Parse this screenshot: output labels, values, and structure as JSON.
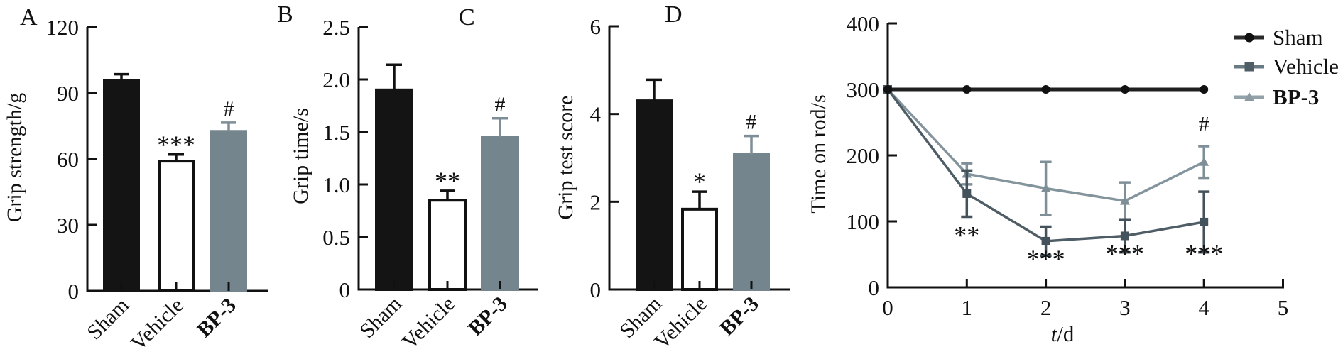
{
  "colors": {
    "axis": "#111111",
    "black_bar": "#141414",
    "white_bar": "#ffffff",
    "bp3_bar": "#75858e",
    "vehicle_line": "#4e5d66",
    "bp3_line": "#84949d",
    "sham_line": "#1f1f1f"
  },
  "chart_data": [
    {
      "id": "A",
      "type": "bar",
      "panel_label": "A",
      "ylabel": "Grip strength/g",
      "ylim": [
        0,
        120
      ],
      "yticks": [
        0,
        30,
        60,
        90,
        120
      ],
      "ytick_labels": [
        "0",
        "30",
        "60",
        "90",
        "120"
      ],
      "categories": [
        "Sham",
        "Vehicle",
        "BP-3"
      ],
      "bold_categories": [
        false,
        false,
        true
      ],
      "values": [
        95.5,
        59,
        72.5
      ],
      "errors_plus": [
        3,
        3,
        4
      ],
      "bar_styles": [
        {
          "fill": "#141414",
          "stroke": "#141414"
        },
        {
          "fill": "#ffffff",
          "stroke": "#111111"
        },
        {
          "fill": "#75858e",
          "stroke": "#75858e"
        }
      ],
      "error_colors": [
        "#111111",
        "#111111",
        "#7e8e97"
      ],
      "annotations": [
        "",
        "***",
        "#"
      ]
    },
    {
      "id": "B",
      "type": "bar",
      "panel_label": "B",
      "ylabel": "Grip time/s",
      "ylim": [
        0,
        2.5
      ],
      "yticks": [
        0,
        0.5,
        1.0,
        1.5,
        2.0,
        2.5
      ],
      "ytick_labels": [
        "0",
        "0.5",
        "1.0",
        "1.5",
        "2.0",
        "2.5"
      ],
      "categories": [
        "Sham",
        "Vehicle",
        "BP-3"
      ],
      "bold_categories": [
        false,
        false,
        true
      ],
      "values": [
        1.9,
        0.85,
        1.45
      ],
      "errors_plus": [
        0.24,
        0.09,
        0.18
      ],
      "bar_styles": [
        {
          "fill": "#141414",
          "stroke": "#141414"
        },
        {
          "fill": "#ffffff",
          "stroke": "#111111"
        },
        {
          "fill": "#75858e",
          "stroke": "#75858e"
        }
      ],
      "error_colors": [
        "#111111",
        "#111111",
        "#7e8e97"
      ],
      "annotations": [
        "",
        "**",
        "#"
      ]
    },
    {
      "id": "C",
      "type": "bar",
      "panel_label": "C",
      "ylabel": "Grip test score",
      "ylim": [
        0,
        6
      ],
      "yticks": [
        0,
        2,
        4,
        6
      ],
      "ytick_labels": [
        "0",
        "2",
        "4",
        "6"
      ],
      "categories": [
        "Sham",
        "Vehicle",
        "BP-3"
      ],
      "bold_categories": [
        false,
        false,
        true
      ],
      "values": [
        4.3,
        1.83,
        3.08
      ],
      "errors_plus": [
        0.48,
        0.4,
        0.42
      ],
      "bar_styles": [
        {
          "fill": "#141414",
          "stroke": "#141414"
        },
        {
          "fill": "#ffffff",
          "stroke": "#111111"
        },
        {
          "fill": "#75858e",
          "stroke": "#75858e"
        }
      ],
      "error_colors": [
        "#111111",
        "#111111",
        "#7e8e97"
      ],
      "annotations": [
        "",
        "*",
        "#"
      ]
    },
    {
      "id": "D",
      "type": "line",
      "panel_label": "D",
      "ylabel": "Time on rod/s",
      "xlabel_italic": "t",
      "xlabel_rest": "/d",
      "ylim": [
        0,
        400
      ],
      "yticks": [
        0,
        100,
        200,
        300,
        400
      ],
      "ytick_labels": [
        "0",
        "100",
        "200",
        "300",
        "400"
      ],
      "xlim": [
        0,
        5
      ],
      "xticks": [
        0,
        1,
        2,
        3,
        4,
        5
      ],
      "xtick_labels": [
        "0",
        "1",
        "2",
        "3",
        "4",
        "5"
      ],
      "series": [
        {
          "name": "Sham",
          "marker": "circle",
          "line_color": "#1f1f1f",
          "marker_color": "#111111",
          "line_width": 5,
          "x": [
            0,
            1,
            2,
            3,
            4
          ],
          "y": [
            300,
            300,
            300,
            300,
            300
          ],
          "err": [
            0,
            0,
            0,
            0,
            0
          ]
        },
        {
          "name": "Vehicle",
          "marker": "square",
          "line_color": "#4e5d66",
          "marker_color": "#44525b",
          "line_width": 3.5,
          "x": [
            0,
            1,
            2,
            3,
            4
          ],
          "y": [
            300,
            142,
            70,
            78,
            99
          ],
          "err": [
            0,
            35,
            22,
            25,
            46
          ]
        },
        {
          "name": "BP-3",
          "marker": "triangle",
          "line_color": "#84949d",
          "marker_color": "#7f8f98",
          "line_width": 3.5,
          "x": [
            0,
            1,
            2,
            3,
            4
          ],
          "y": [
            300,
            172,
            150,
            131,
            190
          ],
          "err": [
            0,
            16,
            40,
            28,
            24
          ]
        }
      ],
      "point_annotations": [
        {
          "text": "**",
          "x": 1,
          "y": 66
        },
        {
          "text": "***",
          "x": 2,
          "y": 30
        },
        {
          "text": "***",
          "x": 3,
          "y": 38
        },
        {
          "text": "***",
          "x": 4,
          "y": 38
        },
        {
          "text": "#",
          "x": 4,
          "y": 237
        }
      ],
      "legend": {
        "entries": [
          {
            "label": "Sham",
            "marker": "circle",
            "line_color": "#2a2a2a",
            "marker_color": "#111111",
            "bold": false
          },
          {
            "label": "Vehicle",
            "marker": "square",
            "line_color": "#6a7a83",
            "marker_color": "#4e5d66",
            "bold": false
          },
          {
            "label": "BP-3",
            "marker": "triangle",
            "line_color": "#93a1a9",
            "marker_color": "#8d9aa3",
            "bold": true
          }
        ]
      }
    }
  ]
}
